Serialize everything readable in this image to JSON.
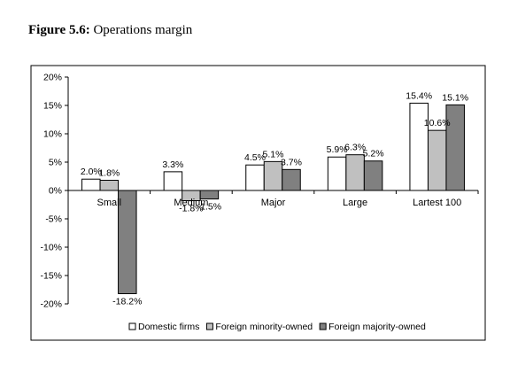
{
  "figure": {
    "label": "Figure 5.6:",
    "caption": "Operations margin"
  },
  "chart_data": {
    "type": "bar",
    "categories": [
      "Small",
      "Medium",
      "Major",
      "Large",
      "Lartest 100"
    ],
    "series": [
      {
        "name": "Domestic firms",
        "values": [
          2.0,
          3.3,
          4.5,
          5.9,
          15.4
        ],
        "labels": [
          "2.0%",
          "3.3%",
          "4.5%",
          "5.9%",
          "15.4%"
        ],
        "color": "#ffffff"
      },
      {
        "name": "Foreign minority-owned",
        "values": [
          1.8,
          -1.8,
          5.1,
          6.3,
          10.6
        ],
        "labels": [
          "1.8%",
          "-1.8%",
          "5.1%",
          "6.3%",
          "10.6%"
        ],
        "color": "#c0c0c0"
      },
      {
        "name": "Foreign majority-owned",
        "values": [
          -18.2,
          -1.5,
          3.7,
          5.2,
          15.1
        ],
        "labels": [
          "-18.2%",
          "-1.5%",
          "3.7%",
          "5.2%",
          "15.1%"
        ],
        "color": "#808080"
      }
    ],
    "yticks": [
      20,
      15,
      10,
      5,
      0,
      -5,
      -10,
      -15,
      -20
    ],
    "ytick_labels": [
      "20%",
      "15%",
      "10%",
      "5%",
      "0%",
      "-5%",
      "-10%",
      "-15%",
      "-20%"
    ],
    "ylim": [
      -20,
      20
    ],
    "legend_position": "bottom",
    "grid": false,
    "title": "",
    "xlabel": "",
    "ylabel": ""
  }
}
